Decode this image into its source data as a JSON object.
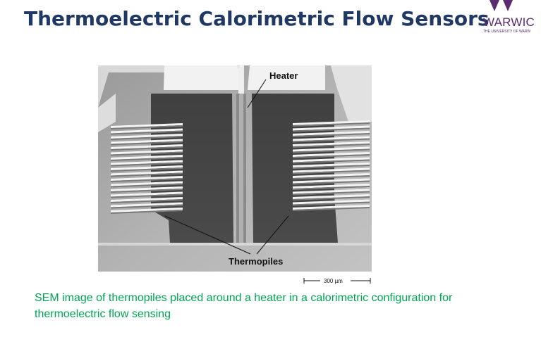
{
  "title": "Thermoelectric Calorimetric Flow Sensors",
  "logo": {
    "name": "WARWIC",
    "subtitle": "THE UNIVERSITY OF WARW",
    "color": "#5b2c6f"
  },
  "figure": {
    "heater_label": "Heater",
    "thermopiles_label": "Thermopiles",
    "scale_label": "300 µm"
  },
  "caption": {
    "line1": "SEM image of thermopiles placed around a heater in a calorimetric configuration for",
    "line2": "thermoelectric flow sensing",
    "color": "#00a651"
  },
  "colors": {
    "title": "#1f3864"
  }
}
